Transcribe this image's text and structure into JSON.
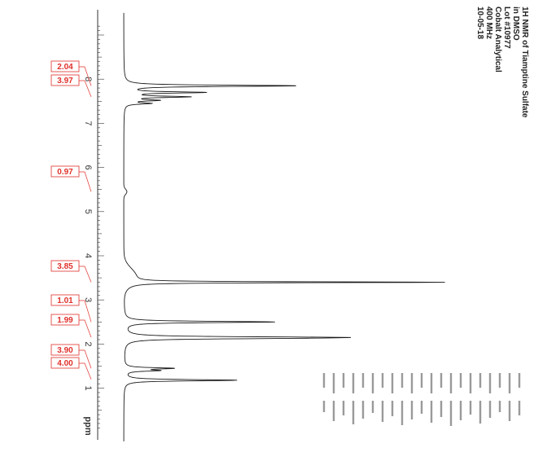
{
  "header": {
    "lines": [
      "1H NMR of Tiamptine Sulfate",
      "in DMSO",
      "Lot #10977",
      "Cobalt Analytical",
      "400 MHz",
      "10-05-18"
    ]
  },
  "chart_data": {
    "type": "line",
    "title": "1H NMR of Tiamptine Sulfate",
    "xlabel": "ppm",
    "ylabel": "",
    "x_direction": "decreasing",
    "xlim": [
      0.0,
      9.0
    ],
    "ticks": [
      8,
      7,
      6,
      5,
      4,
      3,
      2,
      1
    ],
    "unit_label": "ppm",
    "peaks": [
      {
        "ppm": 7.85,
        "height": 0.55
      },
      {
        "ppm": 7.7,
        "height": 0.25
      },
      {
        "ppm": 7.6,
        "height": 0.2
      },
      {
        "ppm": 7.52,
        "height": 0.1
      },
      {
        "ppm": 7.45,
        "height": 0.08
      },
      {
        "ppm": 3.4,
        "height": 1.0
      },
      {
        "ppm": 2.5,
        "height": 0.48
      },
      {
        "ppm": 2.15,
        "height": 0.58
      },
      {
        "ppm": 2.13,
        "height": 0.3
      },
      {
        "ppm": 1.45,
        "height": 0.15
      },
      {
        "ppm": 1.4,
        "height": 0.1
      },
      {
        "ppm": 1.18,
        "height": 0.36
      }
    ],
    "integrals": [
      {
        "value": "2.04",
        "ppm": 7.85
      },
      {
        "value": "3.97",
        "ppm": 7.6
      },
      {
        "value": "0.97",
        "ppm": 5.45
      },
      {
        "value": "3.85",
        "ppm": 3.4
      },
      {
        "value": "1.01",
        "ppm": 2.5
      },
      {
        "value": "1.99",
        "ppm": 2.15
      },
      {
        "value": "3.90",
        "ppm": 1.45
      },
      {
        "value": "4.00",
        "ppm": 1.2
      }
    ]
  },
  "colors": {
    "integral": "#e0302a",
    "trace": "#1a1a1a",
    "axis": "#333333"
  }
}
